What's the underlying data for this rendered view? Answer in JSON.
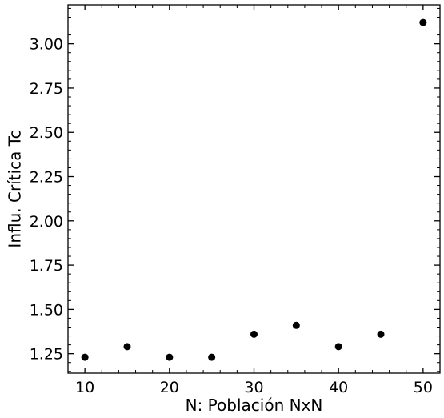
{
  "chart_data": {
    "type": "scatter",
    "title": "",
    "xlabel": "N: Población NxN",
    "ylabel": "Influ. Crítica Tc",
    "xlim": [
      8,
      52
    ],
    "ylim": [
      1.14,
      3.22
    ],
    "x_ticks": [
      10,
      20,
      30,
      40,
      50
    ],
    "x_tick_labels": [
      "10",
      "20",
      "30",
      "40",
      "50"
    ],
    "y_ticks": [
      1.25,
      1.5,
      1.75,
      2.0,
      2.25,
      2.5,
      2.75,
      3.0
    ],
    "y_tick_labels": [
      "1.25",
      "1.50",
      "1.75",
      "2.00",
      "2.25",
      "2.50",
      "2.75",
      "3.00"
    ],
    "x_minor_step": 2,
    "y_minor_step": 0.05,
    "grid": false,
    "marker_color": "#000000",
    "series": [
      {
        "x": [
          10,
          15,
          20,
          25,
          30,
          35,
          40,
          45,
          50
        ],
        "y": [
          1.23,
          1.29,
          1.23,
          1.23,
          1.36,
          1.41,
          1.29,
          1.36,
          3.12
        ]
      }
    ]
  }
}
